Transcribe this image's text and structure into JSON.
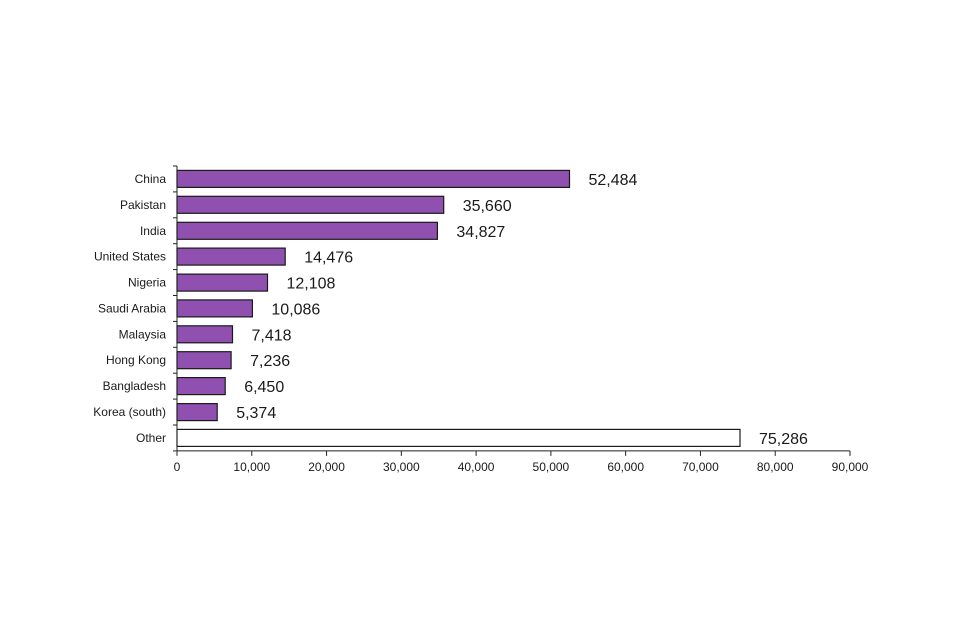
{
  "chart_data": {
    "type": "bar",
    "orientation": "horizontal",
    "title": "",
    "xlabel": "",
    "ylabel": "",
    "categories": [
      "China",
      "Pakistan",
      "India",
      "United States",
      "Nigeria",
      "Saudi Arabia",
      "Malaysia",
      "Hong Kong",
      "Bangladesh",
      "Korea (south)",
      "Other"
    ],
    "values": [
      52484,
      35660,
      34827,
      14476,
      12108,
      10086,
      7418,
      7236,
      6450,
      5374,
      75286
    ],
    "value_labels": [
      "52,484",
      "35,660",
      "34,827",
      "14,476",
      "12,108",
      "10,086",
      "7,418",
      "7,236",
      "6,450",
      "5,374",
      "75,286"
    ],
    "xlim": [
      0,
      90000
    ],
    "ticks": [
      0,
      10000,
      20000,
      30000,
      40000,
      50000,
      60000,
      70000,
      80000,
      90000
    ],
    "tick_labels": [
      "0",
      "10,000",
      "20,000",
      "30,000",
      "40,000",
      "50,000",
      "60,000",
      "70,000",
      "80,000",
      "90,000"
    ],
    "grid": false,
    "bar_colors": [
      "#9050b0",
      "#9050b0",
      "#9050b0",
      "#9050b0",
      "#9050b0",
      "#9050b0",
      "#9050b0",
      "#9050b0",
      "#9050b0",
      "#9050b0",
      "#ffffff"
    ]
  }
}
